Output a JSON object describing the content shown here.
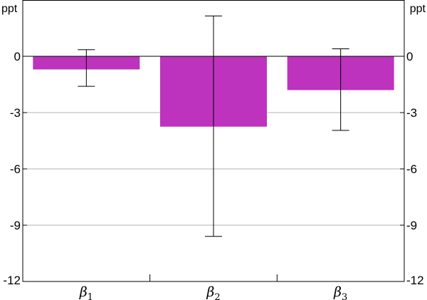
{
  "chart_data": {
    "type": "bar",
    "title": "",
    "xlabel": "",
    "ylabel": "",
    "units": {
      "left": "ppt",
      "right": "ppt"
    },
    "categories": [
      {
        "symbol": "β",
        "sub": "1"
      },
      {
        "symbol": "β",
        "sub": "2"
      },
      {
        "symbol": "β",
        "sub": "3"
      }
    ],
    "values": [
      -0.7,
      -3.75,
      -1.8
    ],
    "error_bars": [
      {
        "low": -1.6,
        "high": 0.35
      },
      {
        "low": -9.6,
        "high": 2.15
      },
      {
        "low": -3.95,
        "high": 0.4
      }
    ],
    "ylim": [
      -12,
      3
    ],
    "yticks": [
      0,
      -3,
      -6,
      -9,
      -12
    ],
    "ytick_labels": [
      "0",
      "-3",
      "-6",
      "-9",
      "-12"
    ],
    "grid": true,
    "bar_color": "#bd33bd"
  }
}
